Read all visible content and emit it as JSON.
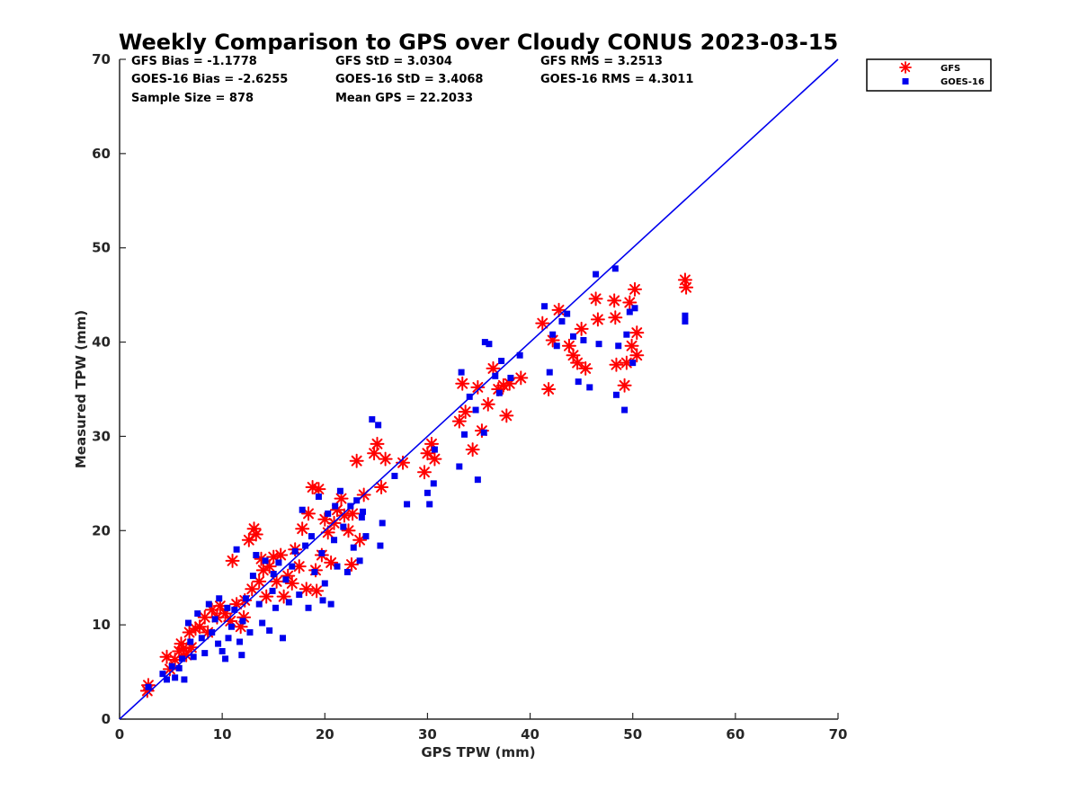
{
  "chart_data": {
    "type": "scatter",
    "title": "Weekly Comparison to GPS over Cloudy CONUS 2023-03-15",
    "xlabel": "GPS TPW (mm)",
    "ylabel": "Measured TPW (mm)",
    "xlim": [
      0,
      70
    ],
    "ylim": [
      0,
      70
    ],
    "xticks": [
      "0",
      "10",
      "20",
      "30",
      "40",
      "50",
      "60",
      "70"
    ],
    "yticks": [
      "0",
      "10",
      "20",
      "30",
      "40",
      "50",
      "60",
      "70"
    ],
    "grid": false,
    "legend_position": "top-right, outside plot",
    "stats": [
      [
        "GFS Bias = -1.1778",
        "GFS StD = 3.0304",
        "GFS RMS = 3.2513"
      ],
      [
        "GOES-16 Bias = -2.6255",
        "GOES-16 StD = 3.4068",
        "GOES-16 RMS = 4.3011"
      ],
      [
        "Sample Size = 878",
        "Mean GPS = 22.2033",
        ""
      ]
    ],
    "reference_line": {
      "from": [
        0,
        0
      ],
      "to": [
        70,
        70
      ],
      "color": "#0000ee"
    },
    "series": [
      {
        "name": "GFS",
        "marker": "asterisk",
        "color": "#ff0000",
        "points": [
          [
            2.7,
            3.0
          ],
          [
            2.8,
            3.6
          ],
          [
            4.6,
            6.6
          ],
          [
            4.9,
            5.3
          ],
          [
            5.4,
            6.3
          ],
          [
            5.8,
            7.2
          ],
          [
            6.0,
            8.0
          ],
          [
            6.2,
            7.5
          ],
          [
            6.5,
            6.8
          ],
          [
            6.8,
            9.2
          ],
          [
            7.0,
            7.6
          ],
          [
            7.4,
            9.6
          ],
          [
            7.8,
            9.8
          ],
          [
            8.3,
            10.8
          ],
          [
            8.6,
            9.2
          ],
          [
            9.0,
            11.6
          ],
          [
            9.5,
            10.8
          ],
          [
            9.8,
            12.0
          ],
          [
            10.3,
            11.2
          ],
          [
            10.8,
            10.4
          ],
          [
            11.0,
            16.8
          ],
          [
            11.4,
            12.2
          ],
          [
            11.8,
            9.8
          ],
          [
            12.1,
            10.8
          ],
          [
            12.6,
            19.0
          ],
          [
            12.9,
            13.8
          ],
          [
            13.1,
            20.2
          ],
          [
            13.3,
            19.6
          ],
          [
            13.6,
            14.6
          ],
          [
            14.0,
            15.8
          ],
          [
            14.3,
            13.0
          ],
          [
            14.6,
            16.2
          ],
          [
            15.0,
            17.2
          ],
          [
            15.3,
            14.6
          ],
          [
            15.7,
            17.4
          ],
          [
            16.0,
            13.0
          ],
          [
            16.4,
            15.2
          ],
          [
            16.8,
            14.4
          ],
          [
            17.1,
            18.0
          ],
          [
            17.5,
            16.2
          ],
          [
            17.8,
            20.2
          ],
          [
            18.2,
            13.8
          ],
          [
            18.4,
            21.8
          ],
          [
            18.8,
            24.6
          ],
          [
            19.1,
            15.8
          ],
          [
            19.4,
            24.4
          ],
          [
            19.7,
            17.4
          ],
          [
            20.0,
            21.2
          ],
          [
            20.3,
            19.8
          ],
          [
            20.6,
            16.6
          ],
          [
            20.9,
            20.8
          ],
          [
            21.2,
            22.2
          ],
          [
            21.6,
            23.4
          ],
          [
            21.9,
            21.6
          ],
          [
            22.3,
            20.0
          ],
          [
            22.6,
            16.4
          ],
          [
            23.1,
            27.4
          ],
          [
            23.4,
            19.0
          ],
          [
            23.8,
            23.8
          ],
          [
            24.8,
            28.2
          ],
          [
            25.1,
            29.2
          ],
          [
            25.5,
            24.6
          ],
          [
            25.9,
            27.6
          ],
          [
            27.6,
            27.2
          ],
          [
            29.7,
            26.2
          ],
          [
            30.0,
            28.2
          ],
          [
            30.4,
            29.2
          ],
          [
            30.7,
            27.6
          ],
          [
            33.1,
            31.6
          ],
          [
            33.4,
            35.6
          ],
          [
            33.7,
            32.6
          ],
          [
            34.4,
            28.6
          ],
          [
            34.9,
            35.2
          ],
          [
            35.3,
            30.6
          ],
          [
            35.9,
            33.4
          ],
          [
            36.4,
            37.2
          ],
          [
            36.9,
            35.0
          ],
          [
            37.4,
            35.4
          ],
          [
            37.7,
            32.2
          ],
          [
            38.0,
            35.6
          ],
          [
            39.1,
            36.2
          ],
          [
            41.2,
            42.0
          ],
          [
            41.8,
            35.0
          ],
          [
            42.2,
            40.2
          ],
          [
            42.8,
            43.4
          ],
          [
            43.8,
            39.6
          ],
          [
            44.2,
            38.6
          ],
          [
            44.6,
            37.8
          ],
          [
            45.0,
            41.4
          ],
          [
            45.4,
            37.2
          ],
          [
            46.4,
            44.6
          ],
          [
            46.6,
            42.4
          ],
          [
            48.2,
            44.4
          ],
          [
            48.3,
            42.6
          ],
          [
            48.4,
            37.6
          ],
          [
            49.2,
            35.4
          ],
          [
            49.4,
            37.8
          ],
          [
            49.7,
            44.2
          ],
          [
            49.9,
            39.6
          ],
          [
            50.2,
            45.6
          ],
          [
            50.4,
            41.0
          ],
          [
            50.4,
            38.6
          ],
          [
            55.1,
            46.6
          ],
          [
            55.2,
            45.8
          ],
          [
            22.7,
            21.8
          ],
          [
            19.2,
            13.6
          ],
          [
            13.8,
            17.0
          ],
          [
            12.2,
            12.6
          ]
        ]
      },
      {
        "name": "GOES-16",
        "marker": "square",
        "color": "#0000ee",
        "points": [
          [
            2.8,
            3.4
          ],
          [
            4.2,
            4.8
          ],
          [
            4.6,
            4.2
          ],
          [
            5.1,
            5.6
          ],
          [
            5.4,
            4.4
          ],
          [
            5.8,
            5.4
          ],
          [
            6.1,
            6.4
          ],
          [
            6.3,
            4.2
          ],
          [
            6.7,
            10.2
          ],
          [
            6.9,
            8.2
          ],
          [
            7.2,
            6.6
          ],
          [
            7.6,
            11.2
          ],
          [
            8.0,
            8.6
          ],
          [
            8.3,
            7.0
          ],
          [
            8.7,
            12.2
          ],
          [
            9.0,
            9.2
          ],
          [
            9.3,
            10.6
          ],
          [
            9.7,
            12.8
          ],
          [
            10.0,
            7.2
          ],
          [
            10.3,
            6.4
          ],
          [
            10.6,
            8.6
          ],
          [
            10.9,
            9.8
          ],
          [
            11.2,
            11.6
          ],
          [
            11.4,
            18.0
          ],
          [
            11.7,
            8.2
          ],
          [
            12.0,
            10.4
          ],
          [
            12.3,
            12.8
          ],
          [
            12.7,
            9.2
          ],
          [
            13.0,
            15.2
          ],
          [
            13.3,
            17.4
          ],
          [
            13.6,
            12.2
          ],
          [
            13.9,
            10.2
          ],
          [
            14.2,
            16.8
          ],
          [
            14.6,
            9.4
          ],
          [
            14.9,
            13.6
          ],
          [
            15.2,
            11.8
          ],
          [
            15.5,
            16.6
          ],
          [
            15.9,
            8.6
          ],
          [
            16.2,
            14.8
          ],
          [
            16.5,
            12.4
          ],
          [
            16.8,
            16.2
          ],
          [
            17.1,
            17.8
          ],
          [
            17.5,
            13.2
          ],
          [
            17.8,
            22.2
          ],
          [
            18.1,
            18.4
          ],
          [
            18.4,
            11.8
          ],
          [
            18.7,
            19.4
          ],
          [
            19.0,
            15.6
          ],
          [
            19.4,
            23.6
          ],
          [
            19.7,
            17.6
          ],
          [
            20.0,
            14.4
          ],
          [
            20.3,
            21.8
          ],
          [
            20.6,
            12.2
          ],
          [
            20.9,
            19.0
          ],
          [
            21.2,
            16.2
          ],
          [
            21.5,
            24.2
          ],
          [
            21.8,
            20.4
          ],
          [
            22.2,
            15.6
          ],
          [
            22.5,
            22.6
          ],
          [
            22.8,
            18.2
          ],
          [
            23.1,
            23.2
          ],
          [
            23.4,
            16.8
          ],
          [
            23.7,
            22.0
          ],
          [
            24.0,
            19.4
          ],
          [
            24.6,
            31.8
          ],
          [
            25.2,
            31.2
          ],
          [
            25.4,
            18.4
          ],
          [
            25.6,
            20.8
          ],
          [
            26.8,
            25.8
          ],
          [
            28.0,
            22.8
          ],
          [
            30.0,
            24.0
          ],
          [
            30.2,
            22.8
          ],
          [
            30.6,
            25.0
          ],
          [
            30.7,
            28.6
          ],
          [
            33.1,
            26.8
          ],
          [
            33.3,
            36.8
          ],
          [
            33.6,
            30.2
          ],
          [
            34.1,
            34.2
          ],
          [
            34.7,
            32.8
          ],
          [
            34.9,
            25.4
          ],
          [
            35.5,
            30.4
          ],
          [
            35.6,
            40.0
          ],
          [
            36.0,
            39.8
          ],
          [
            36.6,
            36.4
          ],
          [
            37.0,
            34.6
          ],
          [
            37.2,
            38.0
          ],
          [
            38.1,
            36.2
          ],
          [
            39.0,
            38.6
          ],
          [
            41.4,
            43.8
          ],
          [
            41.9,
            36.8
          ],
          [
            42.2,
            40.8
          ],
          [
            42.6,
            39.6
          ],
          [
            43.1,
            42.2
          ],
          [
            43.6,
            43.0
          ],
          [
            44.2,
            40.6
          ],
          [
            44.7,
            35.8
          ],
          [
            45.2,
            40.2
          ],
          [
            45.8,
            35.2
          ],
          [
            46.4,
            47.2
          ],
          [
            46.7,
            39.8
          ],
          [
            48.3,
            47.8
          ],
          [
            48.4,
            34.4
          ],
          [
            48.6,
            39.6
          ],
          [
            49.2,
            32.8
          ],
          [
            49.4,
            40.8
          ],
          [
            49.7,
            43.2
          ],
          [
            50.0,
            37.8
          ],
          [
            50.2,
            43.6
          ],
          [
            55.1,
            42.8
          ],
          [
            55.1,
            42.2
          ],
          [
            10.5,
            11.8
          ],
          [
            9.6,
            8.0
          ],
          [
            11.9,
            6.8
          ],
          [
            15.0,
            15.4
          ],
          [
            19.8,
            12.6
          ],
          [
            21.0,
            22.6
          ],
          [
            23.6,
            21.4
          ]
        ]
      }
    ]
  }
}
